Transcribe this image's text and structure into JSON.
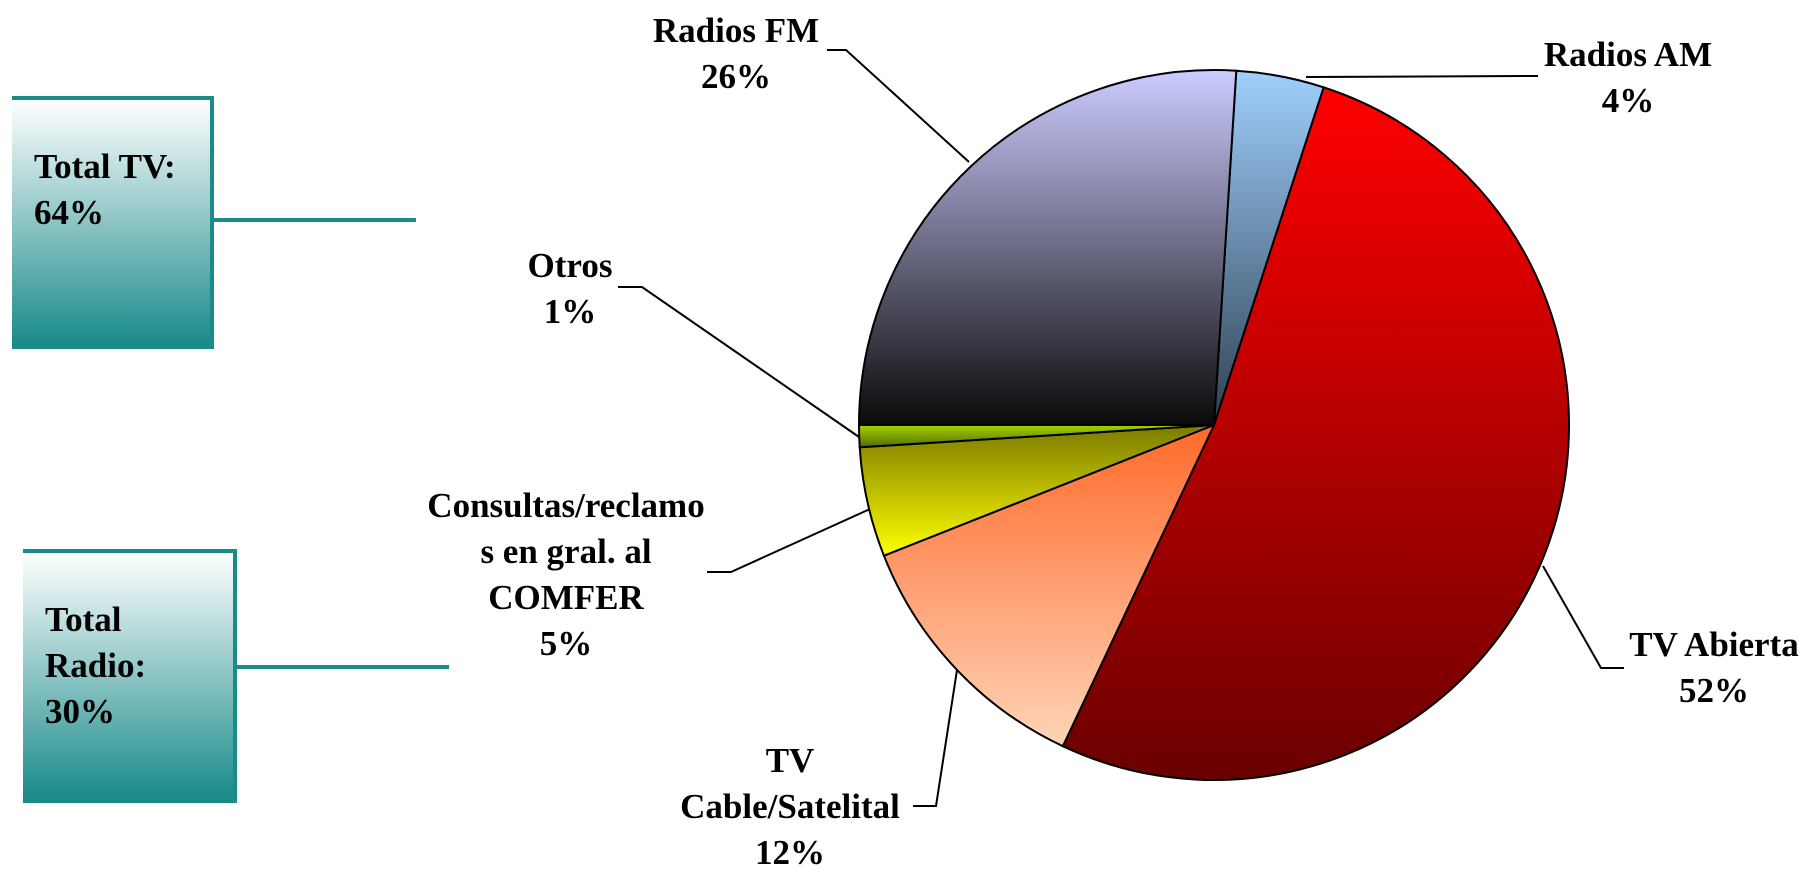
{
  "chart_data": {
    "type": "pie",
    "categories": [
      "Radios AM",
      "TV Abierta",
      "TV Cable/Satelital",
      "Consultas/reclamos en gral. al COMFER",
      "Otros",
      "Radios FM"
    ],
    "values": [
      4,
      52,
      12,
      5,
      1,
      26
    ],
    "value_labels": [
      "4%",
      "52%",
      "12%",
      "5%",
      "1%",
      "26%"
    ],
    "colors": [
      [
        "#a0d0ff",
        "#2e4050"
      ],
      [
        "#ff0000",
        "#6a0000"
      ],
      [
        "#ff6a2a",
        "#ffd4b8"
      ],
      [
        "#7a7a00",
        "#ffff00"
      ],
      [
        "#a8d000",
        "#507000"
      ],
      [
        "#ccccff",
        "#0a0a0a"
      ]
    ],
    "annotations": [
      "Total TV: 64%",
      "Total Radio: 30%"
    ]
  }
}
